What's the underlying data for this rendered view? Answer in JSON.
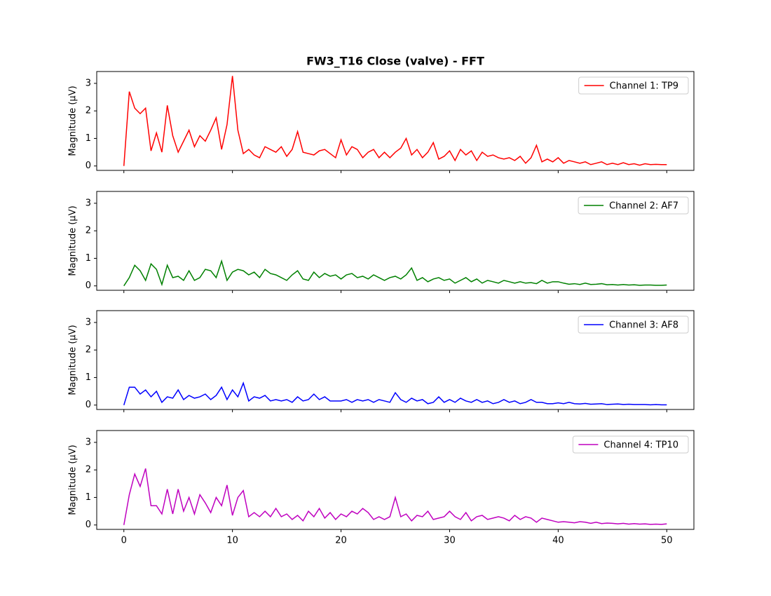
{
  "chart_data": [
    {
      "type": "line",
      "title": "FW3_T16 Close (valve) - FFT",
      "ylabel": "Magnitude (μV)",
      "legend": "upper right",
      "x": [
        0,
        0.5,
        1,
        1.5,
        2,
        2.5,
        3,
        3.5,
        4,
        4.5,
        5,
        5.5,
        6,
        6.5,
        7,
        7.5,
        8,
        8.5,
        9,
        9.5,
        10,
        10.5,
        11,
        11.5,
        12,
        12.5,
        13,
        13.5,
        14,
        14.5,
        15,
        15.5,
        16,
        16.5,
        17,
        17.5,
        18,
        18.5,
        19,
        19.5,
        20,
        20.5,
        21,
        21.5,
        22,
        22.5,
        23,
        23.5,
        24,
        24.5,
        25,
        25.5,
        26,
        26.5,
        27,
        27.5,
        28,
        28.5,
        29,
        29.5,
        30,
        30.5,
        31,
        31.5,
        32,
        32.5,
        33,
        33.5,
        34,
        34.5,
        35,
        35.5,
        36,
        36.5,
        37,
        37.5,
        38,
        38.5,
        39,
        39.5,
        40,
        40.5,
        41,
        41.5,
        42,
        42.5,
        43,
        43.5,
        44,
        44.5,
        45,
        45.5,
        46,
        46.5,
        47,
        47.5,
        48,
        48.5,
        49,
        49.5,
        50
      ],
      "series": [
        {
          "name": "Channel 1: TP9",
          "color": "#ff0000",
          "values": [
            0,
            2.7,
            2.1,
            1.9,
            2.1,
            0.55,
            1.2,
            0.5,
            2.2,
            1.1,
            0.5,
            0.9,
            1.3,
            0.7,
            1.1,
            0.9,
            1.3,
            1.75,
            0.6,
            1.5,
            3.27,
            1.3,
            0.45,
            0.6,
            0.4,
            0.3,
            0.7,
            0.6,
            0.5,
            0.7,
            0.35,
            0.6,
            1.25,
            0.5,
            0.45,
            0.4,
            0.55,
            0.6,
            0.45,
            0.3,
            0.95,
            0.4,
            0.7,
            0.6,
            0.3,
            0.5,
            0.6,
            0.3,
            0.5,
            0.3,
            0.5,
            0.65,
            1.0,
            0.4,
            0.6,
            0.3,
            0.5,
            0.85,
            0.25,
            0.35,
            0.55,
            0.2,
            0.6,
            0.4,
            0.55,
            0.2,
            0.5,
            0.35,
            0.4,
            0.3,
            0.25,
            0.3,
            0.2,
            0.35,
            0.1,
            0.3,
            0.75,
            0.15,
            0.25,
            0.15,
            0.3,
            0.1,
            0.2,
            0.15,
            0.1,
            0.15,
            0.05,
            0.1,
            0.15,
            0.05,
            0.1,
            0.05,
            0.12,
            0.05,
            0.08,
            0.03,
            0.08,
            0.05,
            0.06,
            0.05,
            0.05
          ]
        }
      ],
      "xlim": [
        -2.5,
        52.5
      ],
      "ylim": [
        -0.16,
        3.43
      ],
      "yticks": [
        0,
        1,
        2,
        3
      ]
    },
    {
      "type": "line",
      "ylabel": "Magnitude (μV)",
      "legend": "upper right",
      "x": [
        0,
        0.5,
        1,
        1.5,
        2,
        2.5,
        3,
        3.5,
        4,
        4.5,
        5,
        5.5,
        6,
        6.5,
        7,
        7.5,
        8,
        8.5,
        9,
        9.5,
        10,
        10.5,
        11,
        11.5,
        12,
        12.5,
        13,
        13.5,
        14,
        14.5,
        15,
        15.5,
        16,
        16.5,
        17,
        17.5,
        18,
        18.5,
        19,
        19.5,
        20,
        20.5,
        21,
        21.5,
        22,
        22.5,
        23,
        23.5,
        24,
        24.5,
        25,
        25.5,
        26,
        26.5,
        27,
        27.5,
        28,
        28.5,
        29,
        29.5,
        30,
        30.5,
        31,
        31.5,
        32,
        32.5,
        33,
        33.5,
        34,
        34.5,
        35,
        35.5,
        36,
        36.5,
        37,
        37.5,
        38,
        38.5,
        39,
        39.5,
        40,
        40.5,
        41,
        41.5,
        42,
        42.5,
        43,
        43.5,
        44,
        44.5,
        45,
        45.5,
        46,
        46.5,
        47,
        47.5,
        48,
        48.5,
        49,
        49.5,
        50
      ],
      "series": [
        {
          "name": "Channel 2: AF7",
          "color": "#008000",
          "values": [
            0,
            0.3,
            0.75,
            0.55,
            0.2,
            0.8,
            0.6,
            0.05,
            0.75,
            0.3,
            0.35,
            0.2,
            0.55,
            0.2,
            0.3,
            0.6,
            0.55,
            0.3,
            0.9,
            0.2,
            0.5,
            0.6,
            0.55,
            0.4,
            0.5,
            0.3,
            0.6,
            0.45,
            0.4,
            0.3,
            0.2,
            0.4,
            0.55,
            0.25,
            0.2,
            0.5,
            0.3,
            0.45,
            0.35,
            0.4,
            0.25,
            0.4,
            0.45,
            0.3,
            0.35,
            0.25,
            0.4,
            0.3,
            0.2,
            0.3,
            0.35,
            0.25,
            0.4,
            0.65,
            0.2,
            0.3,
            0.15,
            0.25,
            0.3,
            0.2,
            0.25,
            0.1,
            0.2,
            0.3,
            0.15,
            0.25,
            0.1,
            0.2,
            0.15,
            0.1,
            0.2,
            0.15,
            0.1,
            0.15,
            0.1,
            0.12,
            0.08,
            0.2,
            0.1,
            0.15,
            0.15,
            0.1,
            0.06,
            0.08,
            0.05,
            0.1,
            0.05,
            0.06,
            0.08,
            0.04,
            0.05,
            0.03,
            0.05,
            0.03,
            0.04,
            0.02,
            0.03,
            0.03,
            0.02,
            0.02,
            0.03
          ]
        }
      ],
      "xlim": [
        -2.5,
        52.5
      ],
      "ylim": [
        -0.16,
        3.43
      ],
      "yticks": [
        0,
        1,
        2,
        3
      ]
    },
    {
      "type": "line",
      "ylabel": "Magnitude (μV)",
      "legend": "upper right",
      "x": [
        0,
        0.5,
        1,
        1.5,
        2,
        2.5,
        3,
        3.5,
        4,
        4.5,
        5,
        5.5,
        6,
        6.5,
        7,
        7.5,
        8,
        8.5,
        9,
        9.5,
        10,
        10.5,
        11,
        11.5,
        12,
        12.5,
        13,
        13.5,
        14,
        14.5,
        15,
        15.5,
        16,
        16.5,
        17,
        17.5,
        18,
        18.5,
        19,
        19.5,
        20,
        20.5,
        21,
        21.5,
        22,
        22.5,
        23,
        23.5,
        24,
        24.5,
        25,
        25.5,
        26,
        26.5,
        27,
        27.5,
        28,
        28.5,
        29,
        29.5,
        30,
        30.5,
        31,
        31.5,
        32,
        32.5,
        33,
        33.5,
        34,
        34.5,
        35,
        35.5,
        36,
        36.5,
        37,
        37.5,
        38,
        38.5,
        39,
        39.5,
        40,
        40.5,
        41,
        41.5,
        42,
        42.5,
        43,
        43.5,
        44,
        44.5,
        45,
        45.5,
        46,
        46.5,
        47,
        47.5,
        48,
        48.5,
        49,
        49.5,
        50
      ],
      "series": [
        {
          "name": "Channel 3: AF8",
          "color": "#0000ff",
          "values": [
            0,
            0.65,
            0.65,
            0.4,
            0.55,
            0.3,
            0.5,
            0.1,
            0.3,
            0.25,
            0.55,
            0.2,
            0.35,
            0.25,
            0.3,
            0.4,
            0.2,
            0.35,
            0.65,
            0.2,
            0.55,
            0.3,
            0.8,
            0.15,
            0.3,
            0.25,
            0.35,
            0.15,
            0.2,
            0.15,
            0.2,
            0.1,
            0.3,
            0.15,
            0.2,
            0.4,
            0.2,
            0.3,
            0.15,
            0.15,
            0.15,
            0.2,
            0.1,
            0.2,
            0.15,
            0.2,
            0.1,
            0.2,
            0.15,
            0.1,
            0.45,
            0.2,
            0.1,
            0.25,
            0.15,
            0.2,
            0.05,
            0.1,
            0.3,
            0.1,
            0.2,
            0.1,
            0.25,
            0.15,
            0.1,
            0.2,
            0.1,
            0.15,
            0.05,
            0.1,
            0.2,
            0.1,
            0.15,
            0.05,
            0.1,
            0.2,
            0.1,
            0.1,
            0.05,
            0.05,
            0.08,
            0.05,
            0.1,
            0.05,
            0.04,
            0.06,
            0.03,
            0.04,
            0.05,
            0.02,
            0.03,
            0.04,
            0.02,
            0.03,
            0.02,
            0.02,
            0.02,
            0.01,
            0.02,
            0.01,
            0.01
          ]
        }
      ],
      "xlim": [
        -2.5,
        52.5
      ],
      "ylim": [
        -0.16,
        3.43
      ],
      "yticks": [
        0,
        1,
        2,
        3
      ]
    },
    {
      "type": "line",
      "ylabel": "Magnitude (μV)",
      "legend": "upper right",
      "x": [
        0,
        0.5,
        1,
        1.5,
        2,
        2.5,
        3,
        3.5,
        4,
        4.5,
        5,
        5.5,
        6,
        6.5,
        7,
        7.5,
        8,
        8.5,
        9,
        9.5,
        10,
        10.5,
        11,
        11.5,
        12,
        12.5,
        13,
        13.5,
        14,
        14.5,
        15,
        15.5,
        16,
        16.5,
        17,
        17.5,
        18,
        18.5,
        19,
        19.5,
        20,
        20.5,
        21,
        21.5,
        22,
        22.5,
        23,
        23.5,
        24,
        24.5,
        25,
        25.5,
        26,
        26.5,
        27,
        27.5,
        28,
        28.5,
        29,
        29.5,
        30,
        30.5,
        31,
        31.5,
        32,
        32.5,
        33,
        33.5,
        34,
        34.5,
        35,
        35.5,
        36,
        36.5,
        37,
        37.5,
        38,
        38.5,
        39,
        39.5,
        40,
        40.5,
        41,
        41.5,
        42,
        42.5,
        43,
        43.5,
        44,
        44.5,
        45,
        45.5,
        46,
        46.5,
        47,
        47.5,
        48,
        48.5,
        49,
        49.5,
        50
      ],
      "series": [
        {
          "name": "Channel 4: TP10",
          "color": "#bf00bf",
          "values": [
            0,
            1.1,
            1.85,
            1.4,
            2.05,
            0.7,
            0.7,
            0.4,
            1.3,
            0.4,
            1.3,
            0.5,
            1.0,
            0.4,
            1.1,
            0.8,
            0.45,
            1.0,
            0.7,
            1.45,
            0.35,
            1.0,
            1.25,
            0.3,
            0.45,
            0.3,
            0.5,
            0.3,
            0.6,
            0.3,
            0.4,
            0.2,
            0.35,
            0.15,
            0.5,
            0.3,
            0.6,
            0.25,
            0.45,
            0.2,
            0.4,
            0.3,
            0.5,
            0.4,
            0.6,
            0.45,
            0.2,
            0.3,
            0.2,
            0.3,
            1.0,
            0.3,
            0.4,
            0.15,
            0.35,
            0.3,
            0.5,
            0.2,
            0.25,
            0.3,
            0.5,
            0.3,
            0.2,
            0.45,
            0.15,
            0.3,
            0.35,
            0.2,
            0.25,
            0.3,
            0.25,
            0.15,
            0.35,
            0.2,
            0.3,
            0.25,
            0.1,
            0.25,
            0.2,
            0.15,
            0.1,
            0.12,
            0.1,
            0.08,
            0.12,
            0.1,
            0.06,
            0.1,
            0.05,
            0.07,
            0.06,
            0.04,
            0.06,
            0.03,
            0.05,
            0.03,
            0.04,
            0.02,
            0.03,
            0.02,
            0.04
          ]
        }
      ],
      "xlim": [
        -2.5,
        52.5
      ],
      "ylim": [
        -0.16,
        3.43
      ],
      "yticks": [
        0,
        1,
        2,
        3
      ],
      "xticks": [
        0,
        10,
        20,
        30,
        40,
        50
      ]
    }
  ]
}
